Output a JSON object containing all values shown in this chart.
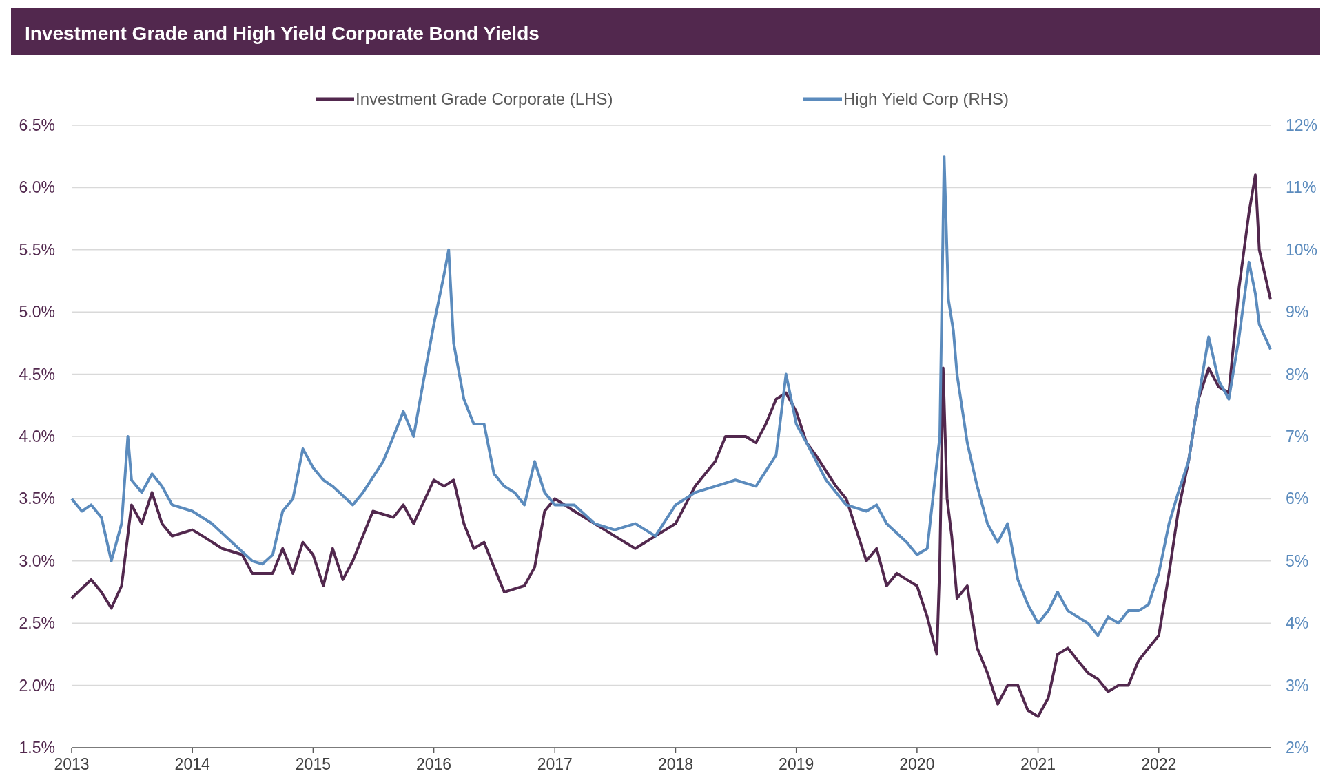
{
  "chart_data": {
    "type": "line",
    "title": "Investment Grade and High Yield Corporate Bond Yields",
    "xlim": [
      "2013-01-01",
      "2022-12-05"
    ],
    "xticks": [
      "2013",
      "2014",
      "2015",
      "2016",
      "2017",
      "2018",
      "2019",
      "2020",
      "2021",
      "2022"
    ],
    "ylim": [
      1.5,
      6.5
    ],
    "yticks": [
      {
        "value": 1.5,
        "label": "1.5%"
      },
      {
        "value": 2,
        "label": "2.0%"
      },
      {
        "value": 2.5,
        "label": "2.5%"
      },
      {
        "value": 3,
        "label": "3.0%"
      },
      {
        "value": 3.5,
        "label": "3.5%"
      },
      {
        "value": 4,
        "label": "4.0%"
      },
      {
        "value": 4.5,
        "label": "4.5%"
      },
      {
        "value": 5,
        "label": "5.0%"
      },
      {
        "value": 5.5,
        "label": "5.5%"
      },
      {
        "value": 6,
        "label": "6.0%"
      },
      {
        "value": 6.5,
        "label": "6.5%"
      }
    ],
    "y2lim": [
      2,
      12
    ],
    "y2ticks": [
      {
        "value": 2,
        "label": "2%"
      },
      {
        "value": 3,
        "label": "3%"
      },
      {
        "value": 4,
        "label": "4%"
      },
      {
        "value": 5,
        "label": "5%"
      },
      {
        "value": 6,
        "label": "6%"
      },
      {
        "value": 7,
        "label": "7%"
      },
      {
        "value": 8,
        "label": "8%"
      },
      {
        "value": 9,
        "label": "9%"
      },
      {
        "value": 10,
        "label": "10%"
      },
      {
        "value": 11,
        "label": "11%"
      },
      {
        "value": 12,
        "label": "12%"
      }
    ],
    "grid": "y",
    "legend": "top",
    "marker": "none",
    "line_style": "solid",
    "series": [
      {
        "name": "Investment Grade Corporate (LHS)",
        "color": "#52284e",
        "x": [
          "2013-01-01",
          "2013-02-01",
          "2013-03-01",
          "2013-04-01",
          "2013-05-01",
          "2013-06-01",
          "2013-06-15",
          "2013-07-01",
          "2013-08-01",
          "2013-09-01",
          "2013-10-01",
          "2013-11-01",
          "2014-01-01",
          "2014-02-01",
          "2014-04-01",
          "2014-06-01",
          "2014-07-01",
          "2014-09-01",
          "2014-10-01",
          "2014-11-01",
          "2014-12-01",
          "2015-01-01",
          "2015-02-01",
          "2015-03-01",
          "2015-04-01",
          "2015-05-01",
          "2015-07-01",
          "2015-09-01",
          "2015-10-01",
          "2015-11-01",
          "2016-01-01",
          "2016-02-01",
          "2016-03-01",
          "2016-04-01",
          "2016-05-01",
          "2016-06-01",
          "2016-07-01",
          "2016-08-01",
          "2016-10-01",
          "2016-11-01",
          "2016-12-01",
          "2017-01-01",
          "2017-03-01",
          "2017-05-01",
          "2017-07-01",
          "2017-09-01",
          "2017-11-01",
          "2018-01-01",
          "2018-03-01",
          "2018-05-01",
          "2018-06-01",
          "2018-08-01",
          "2018-09-01",
          "2018-10-01",
          "2018-11-01",
          "2018-12-01",
          "2019-01-01",
          "2019-02-01",
          "2019-03-01",
          "2019-05-01",
          "2019-06-01",
          "2019-08-01",
          "2019-09-01",
          "2019-10-01",
          "2019-11-01",
          "2019-12-01",
          "2020-01-01",
          "2020-02-01",
          "2020-03-01",
          "2020-03-10",
          "2020-03-20",
          "2020-04-01",
          "2020-04-15",
          "2020-05-01",
          "2020-06-01",
          "2020-07-01",
          "2020-08-01",
          "2020-09-01",
          "2020-10-01",
          "2020-11-01",
          "2020-12-01",
          "2021-01-01",
          "2021-02-01",
          "2021-03-01",
          "2021-04-01",
          "2021-05-01",
          "2021-06-01",
          "2021-07-01",
          "2021-08-01",
          "2021-09-01",
          "2021-10-01",
          "2021-11-01",
          "2021-12-01",
          "2022-01-01",
          "2022-02-01",
          "2022-03-01",
          "2022-04-01",
          "2022-05-01",
          "2022-06-01",
          "2022-07-01",
          "2022-08-01",
          "2022-09-01",
          "2022-10-01",
          "2022-10-20",
          "2022-11-01",
          "2022-12-05"
        ],
        "values": [
          2.7,
          2.78,
          2.85,
          2.75,
          2.62,
          2.8,
          3.1,
          3.45,
          3.3,
          3.55,
          3.3,
          3.2,
          3.25,
          3.2,
          3.1,
          3.05,
          2.9,
          2.9,
          3.1,
          2.9,
          3.15,
          3.05,
          2.8,
          3.1,
          2.85,
          3.0,
          3.4,
          3.35,
          3.45,
          3.3,
          3.65,
          3.6,
          3.65,
          3.3,
          3.1,
          3.15,
          2.95,
          2.75,
          2.8,
          2.95,
          3.4,
          3.5,
          3.4,
          3.3,
          3.2,
          3.1,
          3.2,
          3.3,
          3.6,
          3.8,
          4.0,
          4.0,
          3.95,
          4.1,
          4.3,
          4.35,
          4.2,
          3.95,
          3.85,
          3.6,
          3.5,
          3.0,
          3.1,
          2.8,
          2.9,
          2.85,
          2.8,
          2.55,
          2.25,
          3.0,
          4.55,
          3.5,
          3.2,
          2.7,
          2.8,
          2.3,
          2.1,
          1.85,
          2.0,
          2.0,
          1.8,
          1.75,
          1.9,
          2.25,
          2.3,
          2.2,
          2.1,
          2.05,
          1.95,
          2.0,
          2.0,
          2.2,
          2.3,
          2.4,
          2.9,
          3.4,
          3.8,
          4.3,
          4.55,
          4.4,
          4.35,
          5.2,
          5.8,
          6.1,
          5.5,
          5.1
        ]
      },
      {
        "name": "High Yield Corp (RHS)",
        "color": "#5b8bbd",
        "axis": "y2",
        "x": [
          "2013-01-01",
          "2013-02-01",
          "2013-03-01",
          "2013-04-01",
          "2013-05-01",
          "2013-06-01",
          "2013-06-20",
          "2013-07-01",
          "2013-08-01",
          "2013-09-01",
          "2013-10-01",
          "2013-11-01",
          "2014-01-01",
          "2014-03-01",
          "2014-05-01",
          "2014-07-01",
          "2014-08-01",
          "2014-09-01",
          "2014-10-01",
          "2014-11-01",
          "2014-12-01",
          "2015-01-01",
          "2015-02-01",
          "2015-03-01",
          "2015-05-01",
          "2015-06-01",
          "2015-08-01",
          "2015-09-01",
          "2015-10-01",
          "2015-11-01",
          "2015-12-01",
          "2016-01-01",
          "2016-02-01",
          "2016-02-15",
          "2016-03-01",
          "2016-04-01",
          "2016-05-01",
          "2016-06-01",
          "2016-07-01",
          "2016-08-01",
          "2016-09-01",
          "2016-10-01",
          "2016-11-01",
          "2016-12-01",
          "2017-01-01",
          "2017-03-01",
          "2017-05-01",
          "2017-07-01",
          "2017-09-01",
          "2017-11-01",
          "2018-01-01",
          "2018-03-01",
          "2018-05-01",
          "2018-07-01",
          "2018-09-01",
          "2018-11-01",
          "2018-12-01",
          "2019-01-01",
          "2019-02-01",
          "2019-04-01",
          "2019-06-01",
          "2019-08-01",
          "2019-09-01",
          "2019-10-01",
          "2019-12-01",
          "2020-01-01",
          "2020-02-01",
          "2020-03-10",
          "2020-03-23",
          "2020-04-05",
          "2020-04-20",
          "2020-05-01",
          "2020-06-01",
          "2020-07-01",
          "2020-08-01",
          "2020-09-01",
          "2020-10-01",
          "2020-11-01",
          "2020-12-01",
          "2021-01-01",
          "2021-02-01",
          "2021-03-01",
          "2021-04-01",
          "2021-05-01",
          "2021-06-01",
          "2021-07-01",
          "2021-08-01",
          "2021-09-01",
          "2021-10-01",
          "2021-11-01",
          "2021-12-01",
          "2022-01-01",
          "2022-02-01",
          "2022-03-01",
          "2022-04-01",
          "2022-05-01",
          "2022-06-01",
          "2022-07-01",
          "2022-08-01",
          "2022-09-01",
          "2022-10-01",
          "2022-10-20",
          "2022-11-01",
          "2022-12-05"
        ],
        "values": [
          6.0,
          5.8,
          5.9,
          5.7,
          5.0,
          5.6,
          7.0,
          6.3,
          6.1,
          6.4,
          6.2,
          5.9,
          5.8,
          5.6,
          5.3,
          5.0,
          4.95,
          5.1,
          5.8,
          6.0,
          6.8,
          6.5,
          6.3,
          6.2,
          5.9,
          6.1,
          6.6,
          7.0,
          7.4,
          7.0,
          7.9,
          8.8,
          9.6,
          10.0,
          8.5,
          7.6,
          7.2,
          7.2,
          6.4,
          6.2,
          6.1,
          5.9,
          6.6,
          6.1,
          5.9,
          5.9,
          5.6,
          5.5,
          5.6,
          5.4,
          5.9,
          6.1,
          6.2,
          6.3,
          6.2,
          6.7,
          8.0,
          7.2,
          6.9,
          6.3,
          5.9,
          5.8,
          5.9,
          5.6,
          5.3,
          5.1,
          5.2,
          7.0,
          11.5,
          9.2,
          8.7,
          8.0,
          6.9,
          6.2,
          5.6,
          5.3,
          5.6,
          4.7,
          4.3,
          4.0,
          4.2,
          4.5,
          4.2,
          4.1,
          4.0,
          3.8,
          4.1,
          4.0,
          4.2,
          4.2,
          4.3,
          4.8,
          5.6,
          6.1,
          6.6,
          7.6,
          8.6,
          7.9,
          7.6,
          8.6,
          9.8,
          9.3,
          8.8,
          8.4
        ]
      }
    ]
  }
}
